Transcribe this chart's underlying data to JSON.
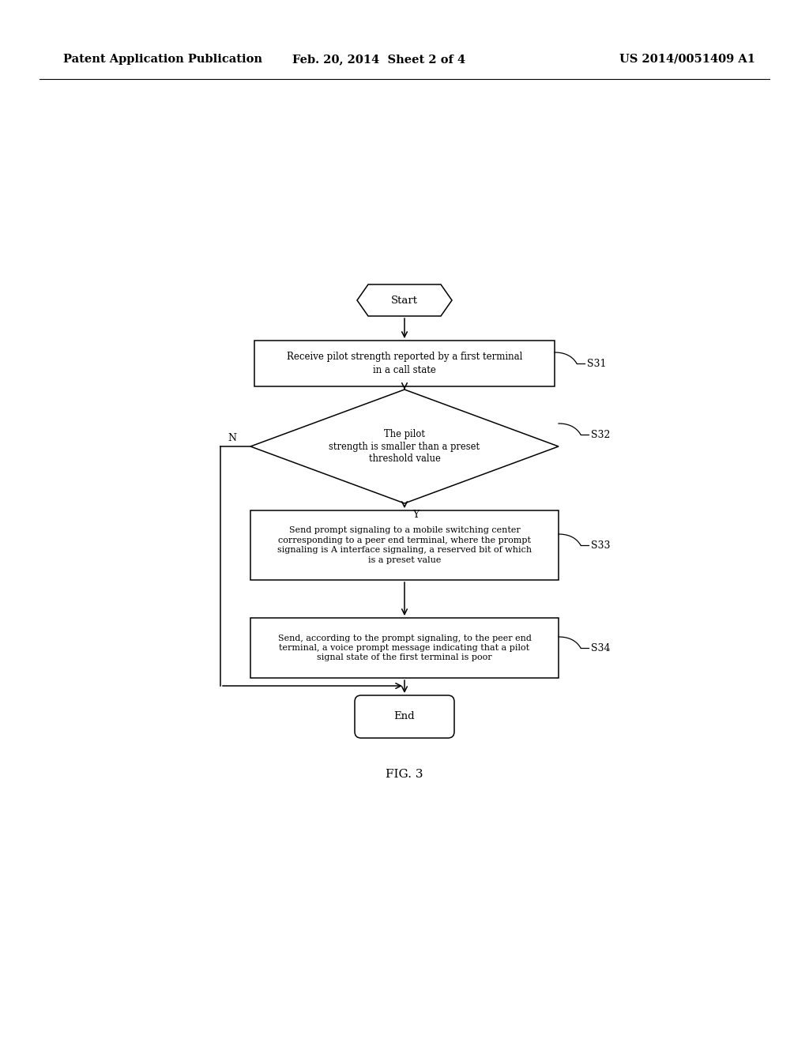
{
  "bg_color": "#ffffff",
  "header_left": "Patent Application Publication",
  "header_center": "Feb. 20, 2014  Sheet 2 of 4",
  "header_right": "US 2014/0051409 A1",
  "header_fontsize": 10.5,
  "fig_label": "FIG. 3",
  "start_text": "Start",
  "end_text": "End",
  "s31_text": "Receive pilot strength reported by a first terminal\nin a call state",
  "s32_text": "The pilot\nstrength is smaller than a preset\nthreshold value",
  "s33_text": "Send prompt signaling to a mobile switching center\ncorresponding to a peer end terminal, where the prompt\nsignaling is A interface signaling, a reserved bit of which\nis a preset value",
  "s34_text": "Send, according to the prompt signaling, to the peer end\nterminal, a voice prompt message indicating that a pilot\nsignal state of the first terminal is poor",
  "label_s31": "S31",
  "label_s32": "S32",
  "label_s33": "S33",
  "label_s34": "S34",
  "label_N": "N",
  "label_Y": "Y"
}
